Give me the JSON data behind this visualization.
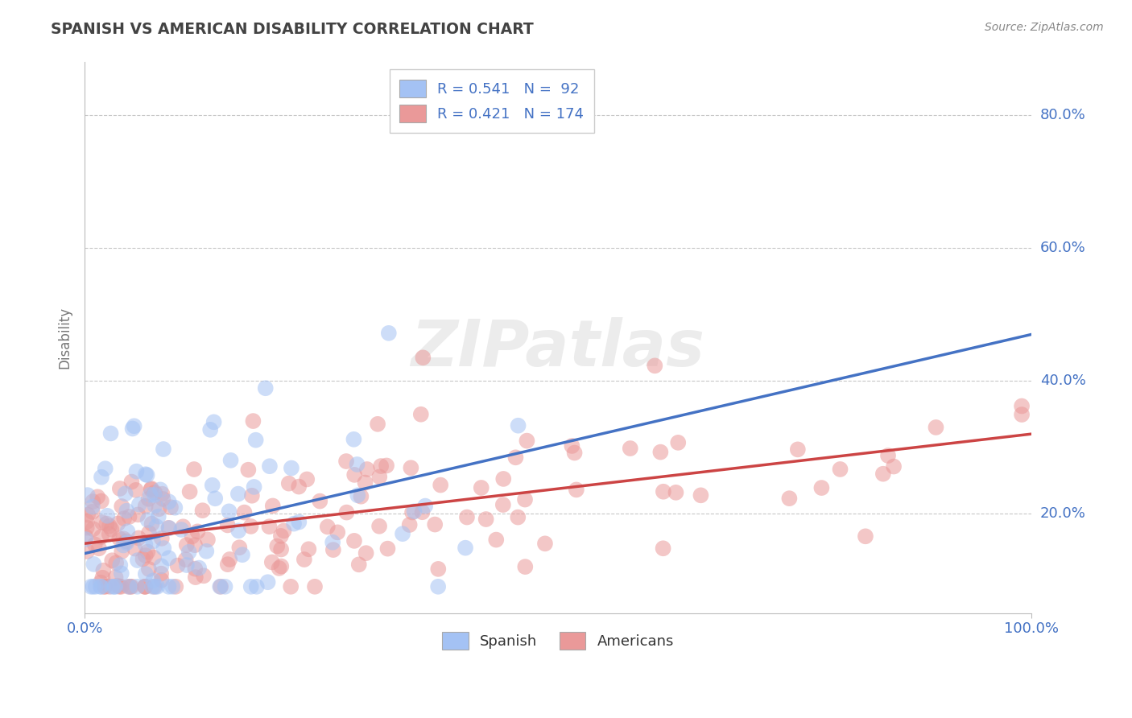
{
  "title": "SPANISH VS AMERICAN DISABILITY CORRELATION CHART",
  "source": "Source: ZipAtlas.com",
  "ylabel": "Disability",
  "xlim": [
    0,
    1
  ],
  "ylim": [
    0.05,
    0.88
  ],
  "ytick_values": [
    0.2,
    0.4,
    0.6,
    0.8
  ],
  "background_color": "#ffffff",
  "grid_color": "#c8c8c8",
  "watermark_text": "ZIPatlas",
  "blue_color": "#a4c2f4",
  "pink_color": "#ea9999",
  "line_blue": "#4472c4",
  "line_pink": "#cc4444",
  "title_color": "#434343",
  "label_color": "#4472c4",
  "source_color": "#888888",
  "blue_line_y0": 0.14,
  "blue_line_y1": 0.47,
  "pink_line_y0": 0.155,
  "pink_line_y1": 0.32
}
